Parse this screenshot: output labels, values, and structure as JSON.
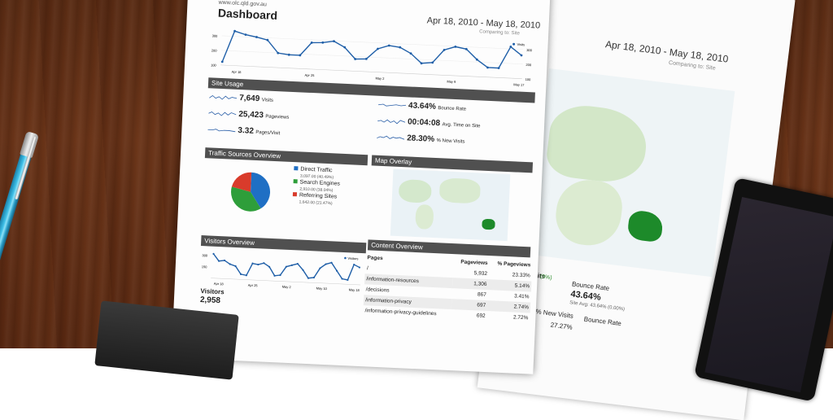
{
  "photo": {
    "subject": "printed analytics report on wooden desk with pen and tablet"
  },
  "report": {
    "site": "www.olc.qld.gov.au",
    "title": "Dashboard",
    "date_range": "Apr 18, 2010 - May 18, 2010",
    "comparing": "Comparing to: Site",
    "top_chart": {
      "legend": "Visits",
      "y_ticks": [
        "300",
        "200",
        "100"
      ],
      "right_ticks": [
        "300",
        "200",
        "100"
      ],
      "x_ticks": [
        "Apr 18",
        "Apr 25",
        "May 2",
        "May 9",
        "May 17"
      ],
      "values": [
        40,
        290,
        265,
        250,
        230,
        130,
        120,
        120,
        225,
        230,
        245,
        200,
        110,
        115,
        200,
        230,
        220,
        175,
        100,
        110,
        215,
        245,
        230,
        150,
        90,
        90,
        265,
        200
      ]
    },
    "site_usage": {
      "header": "Site Usage",
      "metrics": [
        {
          "value": "7,649",
          "label": "Visits"
        },
        {
          "value": "25,423",
          "label": "Pageviews"
        },
        {
          "value": "3.32",
          "label": "Pages/Visit"
        },
        {
          "value": "43.64%",
          "label": "Bounce Rate"
        },
        {
          "value": "00:04:08",
          "label": "Avg. Time on Site"
        },
        {
          "value": "28.30%",
          "label": "% New Visits"
        }
      ]
    },
    "traffic_sources": {
      "header": "Traffic Sources Overview",
      "items": [
        {
          "label": "Direct Traffic",
          "value": "3,097.00 (40.49%)",
          "percent": 40.49,
          "color": "#1f6fc4"
        },
        {
          "label": "Search Engines",
          "value": "2,910.00 (38.04%)",
          "percent": 38.04,
          "color": "#2e9e3a"
        },
        {
          "label": "Referring Sites",
          "value": "1,642.00 (21.47%)",
          "percent": 21.47,
          "color": "#d93b2b"
        }
      ]
    },
    "map_overlay": {
      "header": "Map Overlay"
    },
    "visitors_overview": {
      "header": "Visitors Overview",
      "legend": "Visitors",
      "y_ticks": [
        "300",
        "150"
      ],
      "x_ticks": [
        "Apr 18",
        "Apr 25",
        "May 2",
        "May 10",
        "May 18"
      ],
      "values": [
        280,
        200,
        210,
        170,
        150,
        60,
        50,
        190,
        180,
        200,
        160,
        60,
        70,
        170,
        190,
        210,
        140,
        50,
        60,
        170,
        220,
        240,
        150,
        60,
        50,
        230,
        200
      ],
      "total_label": "Visitors",
      "total_value": "2,958"
    },
    "content_overview": {
      "header": "Content Overview",
      "columns": [
        "Pages",
        "Pageviews",
        "% Pageviews"
      ],
      "rows": [
        {
          "page": "/",
          "pageviews": "5,932",
          "percent": "23.33%"
        },
        {
          "page": "/information-resources",
          "pageviews": "1,306",
          "percent": "5.14%"
        },
        {
          "page": "/decisions",
          "pageviews": "867",
          "percent": "3.41%"
        },
        {
          "page": "/information-privacy",
          "pageviews": "697",
          "percent": "2.74%"
        },
        {
          "page": "/information-privacy-guidelines",
          "pageviews": "692",
          "percent": "2.72%"
        }
      ]
    }
  },
  "back_page": {
    "date_range": "Apr 18, 2010 - May 18, 2010",
    "comparing": "Comparing to: Site",
    "visits_label": "Visits",
    "visits_pct": "(9%)",
    "bounce_label": "Bounce Rate",
    "bounce_value": "43.64%",
    "bounce_sub": "Site Avg: 43.64% (0.00%)",
    "new_visits_label": "% New Visits",
    "bounce_col": "Bounce Rate",
    "new_visits_value": "27.27%"
  }
}
